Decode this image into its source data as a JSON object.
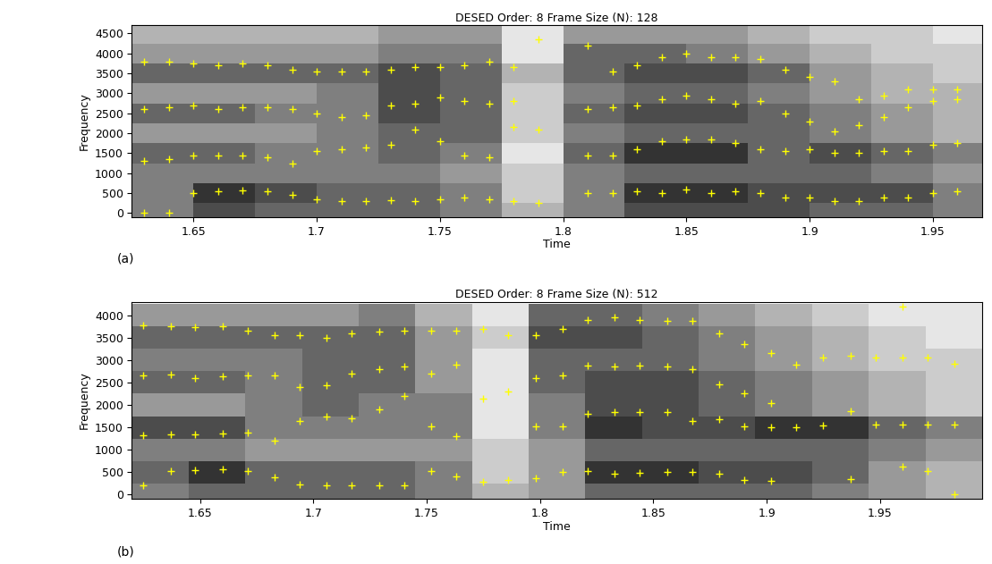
{
  "chart_data": [
    {
      "type": "spectrogram",
      "title": "DESED Order: 8 Frame Size (N): 128",
      "x_label": "Time",
      "y_label": "Frequency",
      "panel_label": "(a)",
      "xlim": [
        1.625,
        1.97
      ],
      "xticks": [
        1.65,
        1.7,
        1.75,
        1.8,
        1.85,
        1.9,
        1.95
      ],
      "ylim": [
        -100,
        4700
      ],
      "yticks": [
        0,
        500,
        1000,
        1500,
        2000,
        2500,
        3000,
        3500,
        4000,
        4500
      ],
      "cell_x_edges": [
        1.625,
        1.65,
        1.675,
        1.7,
        1.725,
        1.75,
        1.775,
        1.8,
        1.825,
        1.85,
        1.875,
        1.9,
        1.925,
        1.95,
        1.975
      ],
      "cell_y_edges": [
        -250,
        250,
        750,
        1250,
        1750,
        2250,
        2750,
        3250,
        3750,
        4250,
        4750
      ],
      "cell_range": [
        0,
        1
      ],
      "cells": [
        [
          0.5,
          0.7,
          0.6,
          0.6,
          0.6,
          0.5,
          0.3,
          0.5,
          0.7,
          0.7,
          0.7,
          0.6,
          0.6,
          0.5
        ],
        [
          0.5,
          0.8,
          0.7,
          0.6,
          0.6,
          0.5,
          0.2,
          0.5,
          0.8,
          0.8,
          0.7,
          0.7,
          0.7,
          0.5
        ],
        [
          0.5,
          0.5,
          0.5,
          0.5,
          0.5,
          0.4,
          0.2,
          0.5,
          0.6,
          0.6,
          0.6,
          0.6,
          0.5,
          0.4
        ],
        [
          0.6,
          0.6,
          0.5,
          0.5,
          0.6,
          0.5,
          0.1,
          0.6,
          0.8,
          0.8,
          0.6,
          0.7,
          0.6,
          0.5
        ],
        [
          0.4,
          0.4,
          0.4,
          0.5,
          0.6,
          0.6,
          0.2,
          0.5,
          0.6,
          0.6,
          0.6,
          0.5,
          0.4,
          0.3
        ],
        [
          0.6,
          0.6,
          0.5,
          0.5,
          0.7,
          0.6,
          0.2,
          0.6,
          0.7,
          0.7,
          0.6,
          0.5,
          0.4,
          0.3
        ],
        [
          0.4,
          0.4,
          0.4,
          0.5,
          0.7,
          0.6,
          0.2,
          0.5,
          0.6,
          0.6,
          0.5,
          0.4,
          0.3,
          0.3
        ],
        [
          0.6,
          0.6,
          0.6,
          0.6,
          0.7,
          0.6,
          0.3,
          0.6,
          0.7,
          0.7,
          0.6,
          0.4,
          0.3,
          0.2
        ],
        [
          0.4,
          0.4,
          0.4,
          0.4,
          0.5,
          0.5,
          0.1,
          0.6,
          0.6,
          0.5,
          0.4,
          0.3,
          0.2,
          0.2
        ],
        [
          0.3,
          0.3,
          0.3,
          0.3,
          0.4,
          0.4,
          0.1,
          0.4,
          0.4,
          0.4,
          0.3,
          0.2,
          0.2,
          0.1
        ]
      ],
      "color": "#ffff00",
      "marker": "plus",
      "x": [
        1.63,
        1.64,
        1.65,
        1.66,
        1.67,
        1.68,
        1.69,
        1.7,
        1.71,
        1.72,
        1.73,
        1.74,
        1.75,
        1.76,
        1.77,
        1.78,
        1.79,
        1.81,
        1.82,
        1.83,
        1.84,
        1.85,
        1.86,
        1.87,
        1.88,
        1.89,
        1.9,
        1.91,
        1.92,
        1.93,
        1.94,
        1.95,
        1.96
      ],
      "series": [
        {
          "values": [
            0,
            0,
            500,
            550,
            580,
            550,
            450,
            350,
            300,
            300,
            320,
            300,
            350,
            400,
            350,
            300,
            250,
            500,
            500,
            550,
            500,
            600,
            500,
            550,
            500,
            400,
            400,
            300,
            300,
            400,
            400,
            500,
            550
          ]
        },
        {
          "values": [
            1300,
            1350,
            1450,
            1450,
            1450,
            1400,
            1250,
            1550,
            1600,
            1650,
            1700,
            2100,
            1800,
            1450,
            1400,
            2150,
            2100,
            1450,
            1450,
            1600,
            1800,
            1850,
            1850,
            1750,
            1600,
            1550,
            1600,
            1500,
            1500,
            1550,
            1550,
            1700,
            1750
          ]
        },
        {
          "values": [
            2600,
            2650,
            2700,
            2600,
            2650,
            2650,
            2600,
            2500,
            2400,
            2450,
            2700,
            2750,
            2900,
            2800,
            2750,
            2800,
            null,
            2600,
            2650,
            2700,
            2850,
            2950,
            2850,
            2750,
            2800,
            2500,
            2300,
            2050,
            2200,
            2400,
            2650,
            2800,
            2850
          ]
        },
        {
          "values": [
            3800,
            3800,
            3750,
            3700,
            3750,
            3700,
            3600,
            3550,
            3550,
            3550,
            3600,
            3650,
            3650,
            3700,
            3800,
            3650,
            4350,
            4200,
            3550,
            3700,
            3900,
            4000,
            3900,
            3900,
            3850,
            3600,
            3400,
            3300,
            2850,
            2950,
            3100,
            3100,
            3100
          ]
        }
      ]
    },
    {
      "type": "spectrogram",
      "title": "DESED Order: 8 Frame Size (N): 512",
      "x_label": "Time",
      "y_label": "Frequency",
      "panel_label": "(b)",
      "xlim": [
        1.62,
        1.995
      ],
      "xticks": [
        1.65,
        1.7,
        1.75,
        1.8,
        1.85,
        1.9,
        1.95
      ],
      "ylim": [
        -100,
        4300
      ],
      "yticks": [
        0,
        500,
        1000,
        1500,
        2000,
        2500,
        3000,
        3500,
        4000
      ],
      "cell_x_edges": [
        1.62,
        1.645,
        1.67,
        1.695,
        1.72,
        1.745,
        1.77,
        1.795,
        1.82,
        1.845,
        1.87,
        1.895,
        1.92,
        1.945,
        1.97,
        1.995
      ],
      "cell_y_edges": [
        -250,
        250,
        750,
        1250,
        1750,
        2250,
        2750,
        3250,
        3750,
        4250
      ],
      "cell_range": [
        0,
        1
      ],
      "cells": [
        [
          0.5,
          0.6,
          0.6,
          0.6,
          0.6,
          0.5,
          0.3,
          0.4,
          0.6,
          0.6,
          0.6,
          0.6,
          0.5,
          0.4,
          0.3
        ],
        [
          0.6,
          0.8,
          0.6,
          0.6,
          0.6,
          0.5,
          0.2,
          0.4,
          0.8,
          0.8,
          0.7,
          0.7,
          0.6,
          0.4,
          0.3
        ],
        [
          0.5,
          0.5,
          0.4,
          0.4,
          0.4,
          0.4,
          0.2,
          0.4,
          0.6,
          0.6,
          0.6,
          0.6,
          0.6,
          0.5,
          0.4
        ],
        [
          0.7,
          0.7,
          0.5,
          0.5,
          0.5,
          0.5,
          0.1,
          0.5,
          0.8,
          0.7,
          0.7,
          0.8,
          0.8,
          0.6,
          0.5
        ],
        [
          0.4,
          0.4,
          0.5,
          0.6,
          0.5,
          0.5,
          0.1,
          0.5,
          0.7,
          0.7,
          0.6,
          0.5,
          0.4,
          0.3,
          0.2
        ],
        [
          0.6,
          0.6,
          0.5,
          0.6,
          0.6,
          0.4,
          0.1,
          0.6,
          0.7,
          0.7,
          0.6,
          0.5,
          0.4,
          0.3,
          0.2
        ],
        [
          0.5,
          0.5,
          0.5,
          0.6,
          0.6,
          0.4,
          0.1,
          0.6,
          0.6,
          0.6,
          0.5,
          0.4,
          0.3,
          0.2,
          0.2
        ],
        [
          0.6,
          0.6,
          0.6,
          0.6,
          0.6,
          0.4,
          0.2,
          0.7,
          0.7,
          0.6,
          0.5,
          0.4,
          0.3,
          0.2,
          0.1
        ],
        [
          0.4,
          0.4,
          0.4,
          0.4,
          0.5,
          0.3,
          0.1,
          0.6,
          0.6,
          0.5,
          0.4,
          0.3,
          0.2,
          0.1,
          0.1
        ]
      ],
      "color": "#ffff00",
      "marker": "plus",
      "x": [
        1.625,
        1.637,
        1.648,
        1.66,
        1.671,
        1.683,
        1.694,
        1.706,
        1.717,
        1.729,
        1.74,
        1.752,
        1.763,
        1.775,
        1.786,
        1.798,
        1.81,
        1.821,
        1.833,
        1.844,
        1.856,
        1.867,
        1.879,
        1.89,
        1.902,
        1.913,
        1.925,
        1.937,
        1.948,
        1.96,
        1.971,
        1.983
      ],
      "series": [
        {
          "values": [
            200,
            530,
            550,
            570,
            520,
            380,
            220,
            200,
            200,
            200,
            200,
            530,
            400,
            280,
            330,
            370,
            500,
            520,
            470,
            480,
            500,
            500,
            470,
            330,
            300,
            null,
            null,
            350,
            null,
            620,
            530,
            0
          ]
        },
        {
          "values": [
            1330,
            1350,
            1350,
            1360,
            1380,
            1200,
            1650,
            1750,
            1700,
            1900,
            2200,
            1530,
            1300,
            2150,
            2300,
            1520,
            1530,
            1800,
            1850,
            1850,
            1850,
            1650,
            1680,
            1530,
            1500,
            1500,
            1540,
            1870,
            1560,
            1560,
            1560,
            1560
          ]
        },
        {
          "values": [
            2650,
            2680,
            2600,
            2630,
            2650,
            2650,
            2400,
            2430,
            2700,
            2800,
            2850,
            2700,
            2900,
            null,
            null,
            2600,
            2650,
            2880,
            2850,
            2870,
            2850,
            2800,
            2450,
            2250,
            2050,
            2900,
            3050,
            3100,
            3050,
            3050,
            3050,
            2920
          ]
        },
        {
          "values": [
            3780,
            3750,
            3730,
            3750,
            3650,
            3550,
            3550,
            3500,
            3600,
            3630,
            3650,
            3650,
            3650,
            3700,
            3550,
            3550,
            3700,
            3900,
            3950,
            3900,
            3870,
            3870,
            3600,
            3350,
            3150,
            null,
            null,
            null,
            null,
            4200,
            null,
            null
          ]
        }
      ]
    }
  ]
}
